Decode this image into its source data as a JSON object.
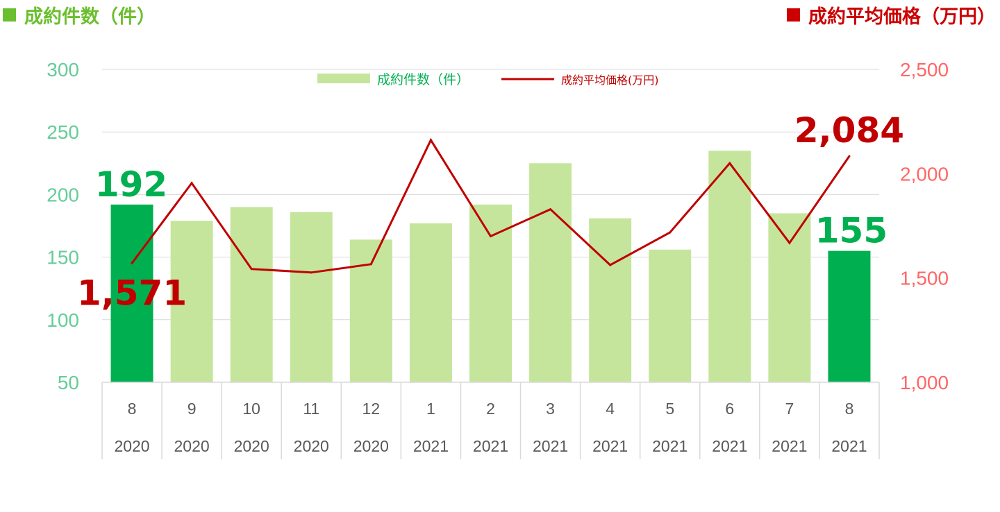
{
  "headers": {
    "left": {
      "label": "成約件数（件）",
      "color": "#6abf2e"
    },
    "right": {
      "label": "成約平均価格（万円）",
      "color": "#cc0000"
    }
  },
  "chart_data": {
    "type": "bar",
    "categories": [
      "8",
      "9",
      "10",
      "11",
      "12",
      "1",
      "2",
      "3",
      "4",
      "5",
      "6",
      "7",
      "8"
    ],
    "category_years": [
      "2020",
      "2020",
      "2020",
      "2020",
      "2020",
      "2021",
      "2021",
      "2021",
      "2021",
      "2021",
      "2021",
      "2021",
      "2021"
    ],
    "series": [
      {
        "name": "成約件数（件）",
        "type": "bar",
        "axis": "left",
        "values": [
          192,
          179,
          190,
          186,
          164,
          177,
          192,
          225,
          181,
          156,
          235,
          185,
          155
        ]
      },
      {
        "name": "成約平均価格(万円)",
        "type": "line",
        "axis": "right",
        "values": [
          1571,
          1955,
          1543,
          1526,
          1566,
          2161,
          1700,
          1829,
          1562,
          1718,
          2050,
          1668,
          2084
        ]
      }
    ],
    "y_left": {
      "ylim": [
        50,
        300
      ],
      "ticks": [
        "50",
        "100",
        "150",
        "200",
        "250",
        "300"
      ]
    },
    "y_right": {
      "ylim": [
        1000,
        2500
      ],
      "ticks": [
        "1,000",
        "1,500",
        "2,000",
        "2,500"
      ]
    },
    "highlight_indices": [
      0,
      12
    ],
    "annotations": [
      {
        "series": 0,
        "index": 0,
        "text": "192"
      },
      {
        "series": 0,
        "index": 12,
        "text": "155"
      },
      {
        "series": 1,
        "index": 0,
        "text": "1,571"
      },
      {
        "series": 1,
        "index": 12,
        "text": "2,084"
      }
    ],
    "legend_position": "top-center",
    "grid": true,
    "colors": {
      "bar": "#c5e59d",
      "bar_highlight": "#00b050",
      "line": "#c00000",
      "left_axis": "#66cc99",
      "right_axis": "#ff6666",
      "grid": "#d9d9d9",
      "category_text": "#595959"
    }
  }
}
